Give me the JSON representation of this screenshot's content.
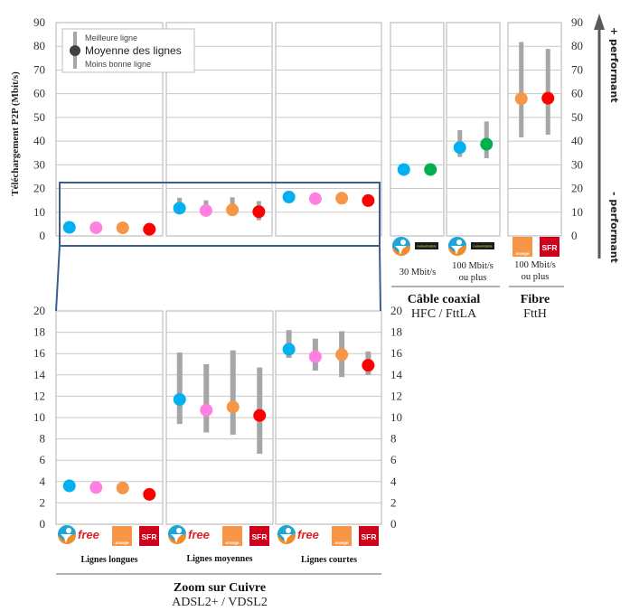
{
  "chart_data": [
    {
      "id": "overview",
      "type": "scatter",
      "subtype": "dot-with-range",
      "title": "",
      "ylabel": "Téléchargement P2P (Mbit/s)",
      "ylim": [
        0,
        90
      ],
      "yticks": [
        0,
        10,
        20,
        30,
        40,
        50,
        60,
        70,
        80,
        90
      ],
      "grid": true,
      "legend": {
        "placement": "top-left",
        "entries": [
          "Meilleure ligne",
          "Moyenne des lignes",
          "Moins bonne ligne"
        ]
      },
      "panels": [
        {
          "name": "Lignes longues",
          "group": "Cuivre",
          "points": [
            {
              "operator": "Bouygues Telecom",
              "color": "#00B0F0",
              "mean": 3.6,
              "min": null,
              "max": null
            },
            {
              "operator": "Free",
              "color": "#FF80E0",
              "mean": 3.45,
              "min": null,
              "max": null
            },
            {
              "operator": "Orange",
              "color": "#F79646",
              "mean": 3.4,
              "min": null,
              "max": null
            },
            {
              "operator": "SFR",
              "color": "#FF0000",
              "mean": 2.8,
              "min": null,
              "max": null
            }
          ]
        },
        {
          "name": "Lignes moyennes",
          "group": "Cuivre",
          "points": [
            {
              "operator": "Bouygues Telecom",
              "color": "#00B0F0",
              "mean": 11.7,
              "min": 9.4,
              "max": 16.1
            },
            {
              "operator": "Free",
              "color": "#FF80E0",
              "mean": 10.7,
              "min": 8.6,
              "max": 15.0
            },
            {
              "operator": "Orange",
              "color": "#F79646",
              "mean": 11.0,
              "min": 8.4,
              "max": 16.3
            },
            {
              "operator": "SFR",
              "color": "#FF0000",
              "mean": 10.2,
              "min": 6.6,
              "max": 14.7
            }
          ]
        },
        {
          "name": "Lignes courtes",
          "group": "Cuivre",
          "points": [
            {
              "operator": "Bouygues Telecom",
              "color": "#00B0F0",
              "mean": 16.4,
              "min": 15.6,
              "max": 18.2
            },
            {
              "operator": "Free",
              "color": "#FF80E0",
              "mean": 15.7,
              "min": 14.4,
              "max": 17.4
            },
            {
              "operator": "Orange",
              "color": "#F79646",
              "mean": 15.9,
              "min": 13.8,
              "max": 18.1
            },
            {
              "operator": "SFR",
              "color": "#FF0000",
              "mean": 14.9,
              "min": 14.0,
              "max": 16.2
            }
          ]
        },
        {
          "name": "30 Mbit/s",
          "group": "Câble coaxial",
          "points": [
            {
              "operator": "Bouygues Telecom",
              "color": "#00B0F0",
              "mean": 28.0,
              "min": null,
              "max": null
            },
            {
              "operator": "Numericable",
              "color": "#00B050",
              "mean": 28.0,
              "min": null,
              "max": null
            }
          ]
        },
        {
          "name": "100 Mbit/s ou plus",
          "group": "Câble coaxial",
          "points": [
            {
              "operator": "Bouygues Telecom",
              "color": "#00B0F0",
              "mean": 37.3,
              "min": 33.3,
              "max": 44.6
            },
            {
              "operator": "Numericable",
              "color": "#00B050",
              "mean": 38.7,
              "min": 32.8,
              "max": 48.3
            }
          ]
        },
        {
          "name": "100 Mbit/s ou plus",
          "group": "Fibre",
          "points": [
            {
              "operator": "Orange",
              "color": "#F79646",
              "mean": 57.9,
              "min": 41.6,
              "max": 81.8
            },
            {
              "operator": "SFR",
              "color": "#FF0000",
              "mean": 58.1,
              "min": 42.7,
              "max": 78.9
            }
          ]
        }
      ]
    },
    {
      "id": "zoom-cuivre",
      "type": "scatter",
      "subtype": "dot-with-range",
      "title": "Zoom sur Cuivre",
      "ylim": [
        0,
        20
      ],
      "yticks": [
        0,
        2,
        4,
        6,
        8,
        10,
        12,
        14,
        16,
        18,
        20
      ],
      "grid": true,
      "panels_ref": [
        "Lignes longues",
        "Lignes moyennes",
        "Lignes courtes"
      ]
    }
  ],
  "labels": {
    "ylabel": "Téléchargement P2P (Mbit/s)",
    "legend_best": "Meilleure ligne",
    "legend_mean": "Moyenne des lignes",
    "legend_worst": "Moins bonne ligne",
    "perf_up": "+ performant",
    "perf_down": "- performant",
    "cable_30": "30 Mbit/s",
    "cable_100_l1": "100 Mbit/s",
    "cable_100_l2": "ou plus",
    "fibre_100_l1": "100 Mbit/s",
    "fibre_100_l2": "ou plus",
    "cable_title": "Câble coaxial",
    "cable_sub": "HFC / FttLA",
    "fibre_title": "Fibre",
    "fibre_sub": "FttH",
    "copper_longues": "Lignes longues",
    "copper_moyennes": "Lignes moyennes",
    "copper_courtes": "Lignes courtes",
    "copper_title": "Zoom  sur Cuivre",
    "copper_sub": "ADSL2+ / VDSL2"
  },
  "logos": {
    "free": "free",
    "orange": "orange",
    "sfr": "SFR",
    "numericable": "numericable"
  },
  "colors": {
    "bouygues": "#00B0F0",
    "free": "#FF80E0",
    "orange": "#F79646",
    "sfr": "#FF0000",
    "numericable": "#00B050",
    "range_bar": "#A6A6A6",
    "zoom_frame": "#3B5E8C",
    "grid": "#C8C8C8"
  }
}
